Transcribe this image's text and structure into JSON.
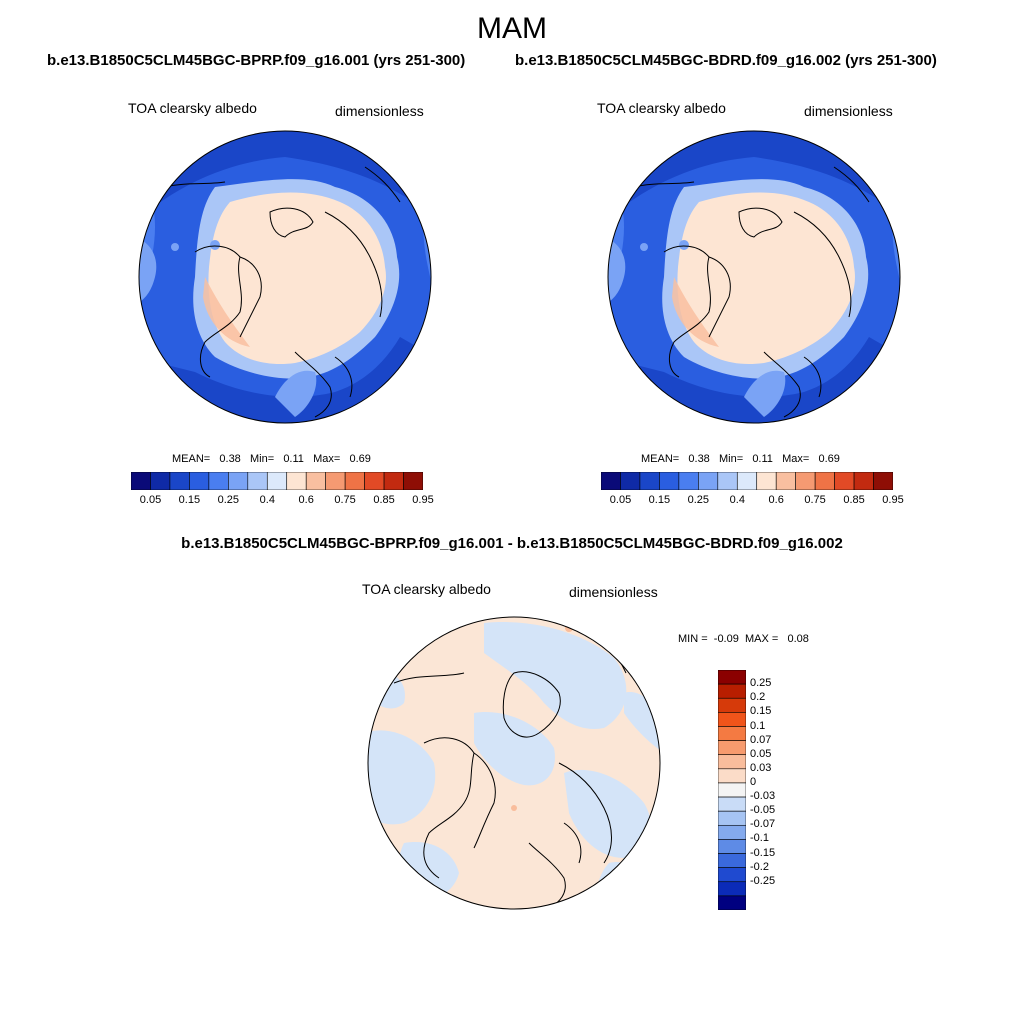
{
  "season": "MAM",
  "panels": [
    {
      "case": "b.e13.B1850C5CLM45BGC-BPRP.f09_g16.001 (yrs 251-300)",
      "variable": "TOA clearsky albedo",
      "units": "dimensionless",
      "stats": {
        "mean_label": "MEAN=",
        "mean": "0.38",
        "min_label": "Min=",
        "min": "0.11",
        "max_label": "Max=",
        "max": "0.69"
      }
    },
    {
      "case": "b.e13.B1850C5CLM45BGC-BDRD.f09_g16.002 (yrs 251-300)",
      "variable": "TOA clearsky albedo",
      "units": "dimensionless",
      "stats": {
        "mean_label": "MEAN=",
        "mean": "0.38",
        "min_label": "Min=",
        "min": "0.11",
        "max_label": "Max=",
        "max": "0.69"
      }
    }
  ],
  "colorbar": {
    "colors": [
      "#0a0a78",
      "#0f2aa6",
      "#1a46c8",
      "#2a5ee0",
      "#4a7ef0",
      "#7aa3f5",
      "#aac6f7",
      "#dce9fb",
      "#fde5d3",
      "#f9bfa0",
      "#f59a72",
      "#ef7346",
      "#e24a26",
      "#c22a10",
      "#8e0e05"
    ],
    "labels": [
      "0.05",
      "0.15",
      "0.25",
      "0.4",
      "0.6",
      "0.75",
      "0.85",
      "0.95"
    ]
  },
  "difference": {
    "title": "b.e13.B1850C5CLM45BGC-BPRP.f09_g16.001 - b.e13.B1850C5CLM45BGC-BDRD.f09_g16.002",
    "variable": "TOA clearsky albedo",
    "units": "dimensionless",
    "minmax": {
      "min_label": "MIN =",
      "min": "-0.09",
      "max_label": "MAX =",
      "max": "0.08"
    },
    "colorbar": {
      "colors": [
        "#8b0000",
        "#b81e00",
        "#d63a0a",
        "#f0541a",
        "#f47a42",
        "#f79b6e",
        "#f9bd9c",
        "#fbdcc8",
        "#f4f4f4",
        "#c9dcf7",
        "#a6c4f3",
        "#84aaee",
        "#5e8be6",
        "#3a69dc",
        "#1f4ad0",
        "#0b2bb8",
        "#000080"
      ],
      "labels": [
        "0.25",
        "0.2",
        "0.15",
        "0.1",
        "0.07",
        "0.05",
        "0.03",
        "0",
        "-0.03",
        "-0.05",
        "-0.07",
        "-0.1",
        "-0.15",
        "-0.2",
        "-0.25"
      ]
    }
  }
}
